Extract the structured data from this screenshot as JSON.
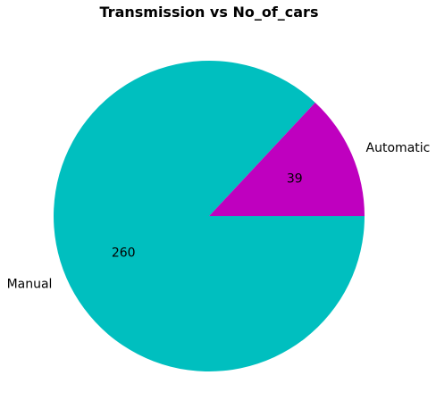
{
  "chart_data": {
    "type": "pie",
    "title": "Transmission vs No_of_cars",
    "categories": [
      "Manual",
      "Automatic"
    ],
    "values": [
      260,
      39
    ],
    "colors": [
      "#00BFBF",
      "#BF00BF"
    ],
    "start_angle_deg": 0,
    "direction": "clockwise",
    "legend": "none",
    "value_labels_shown": true
  }
}
